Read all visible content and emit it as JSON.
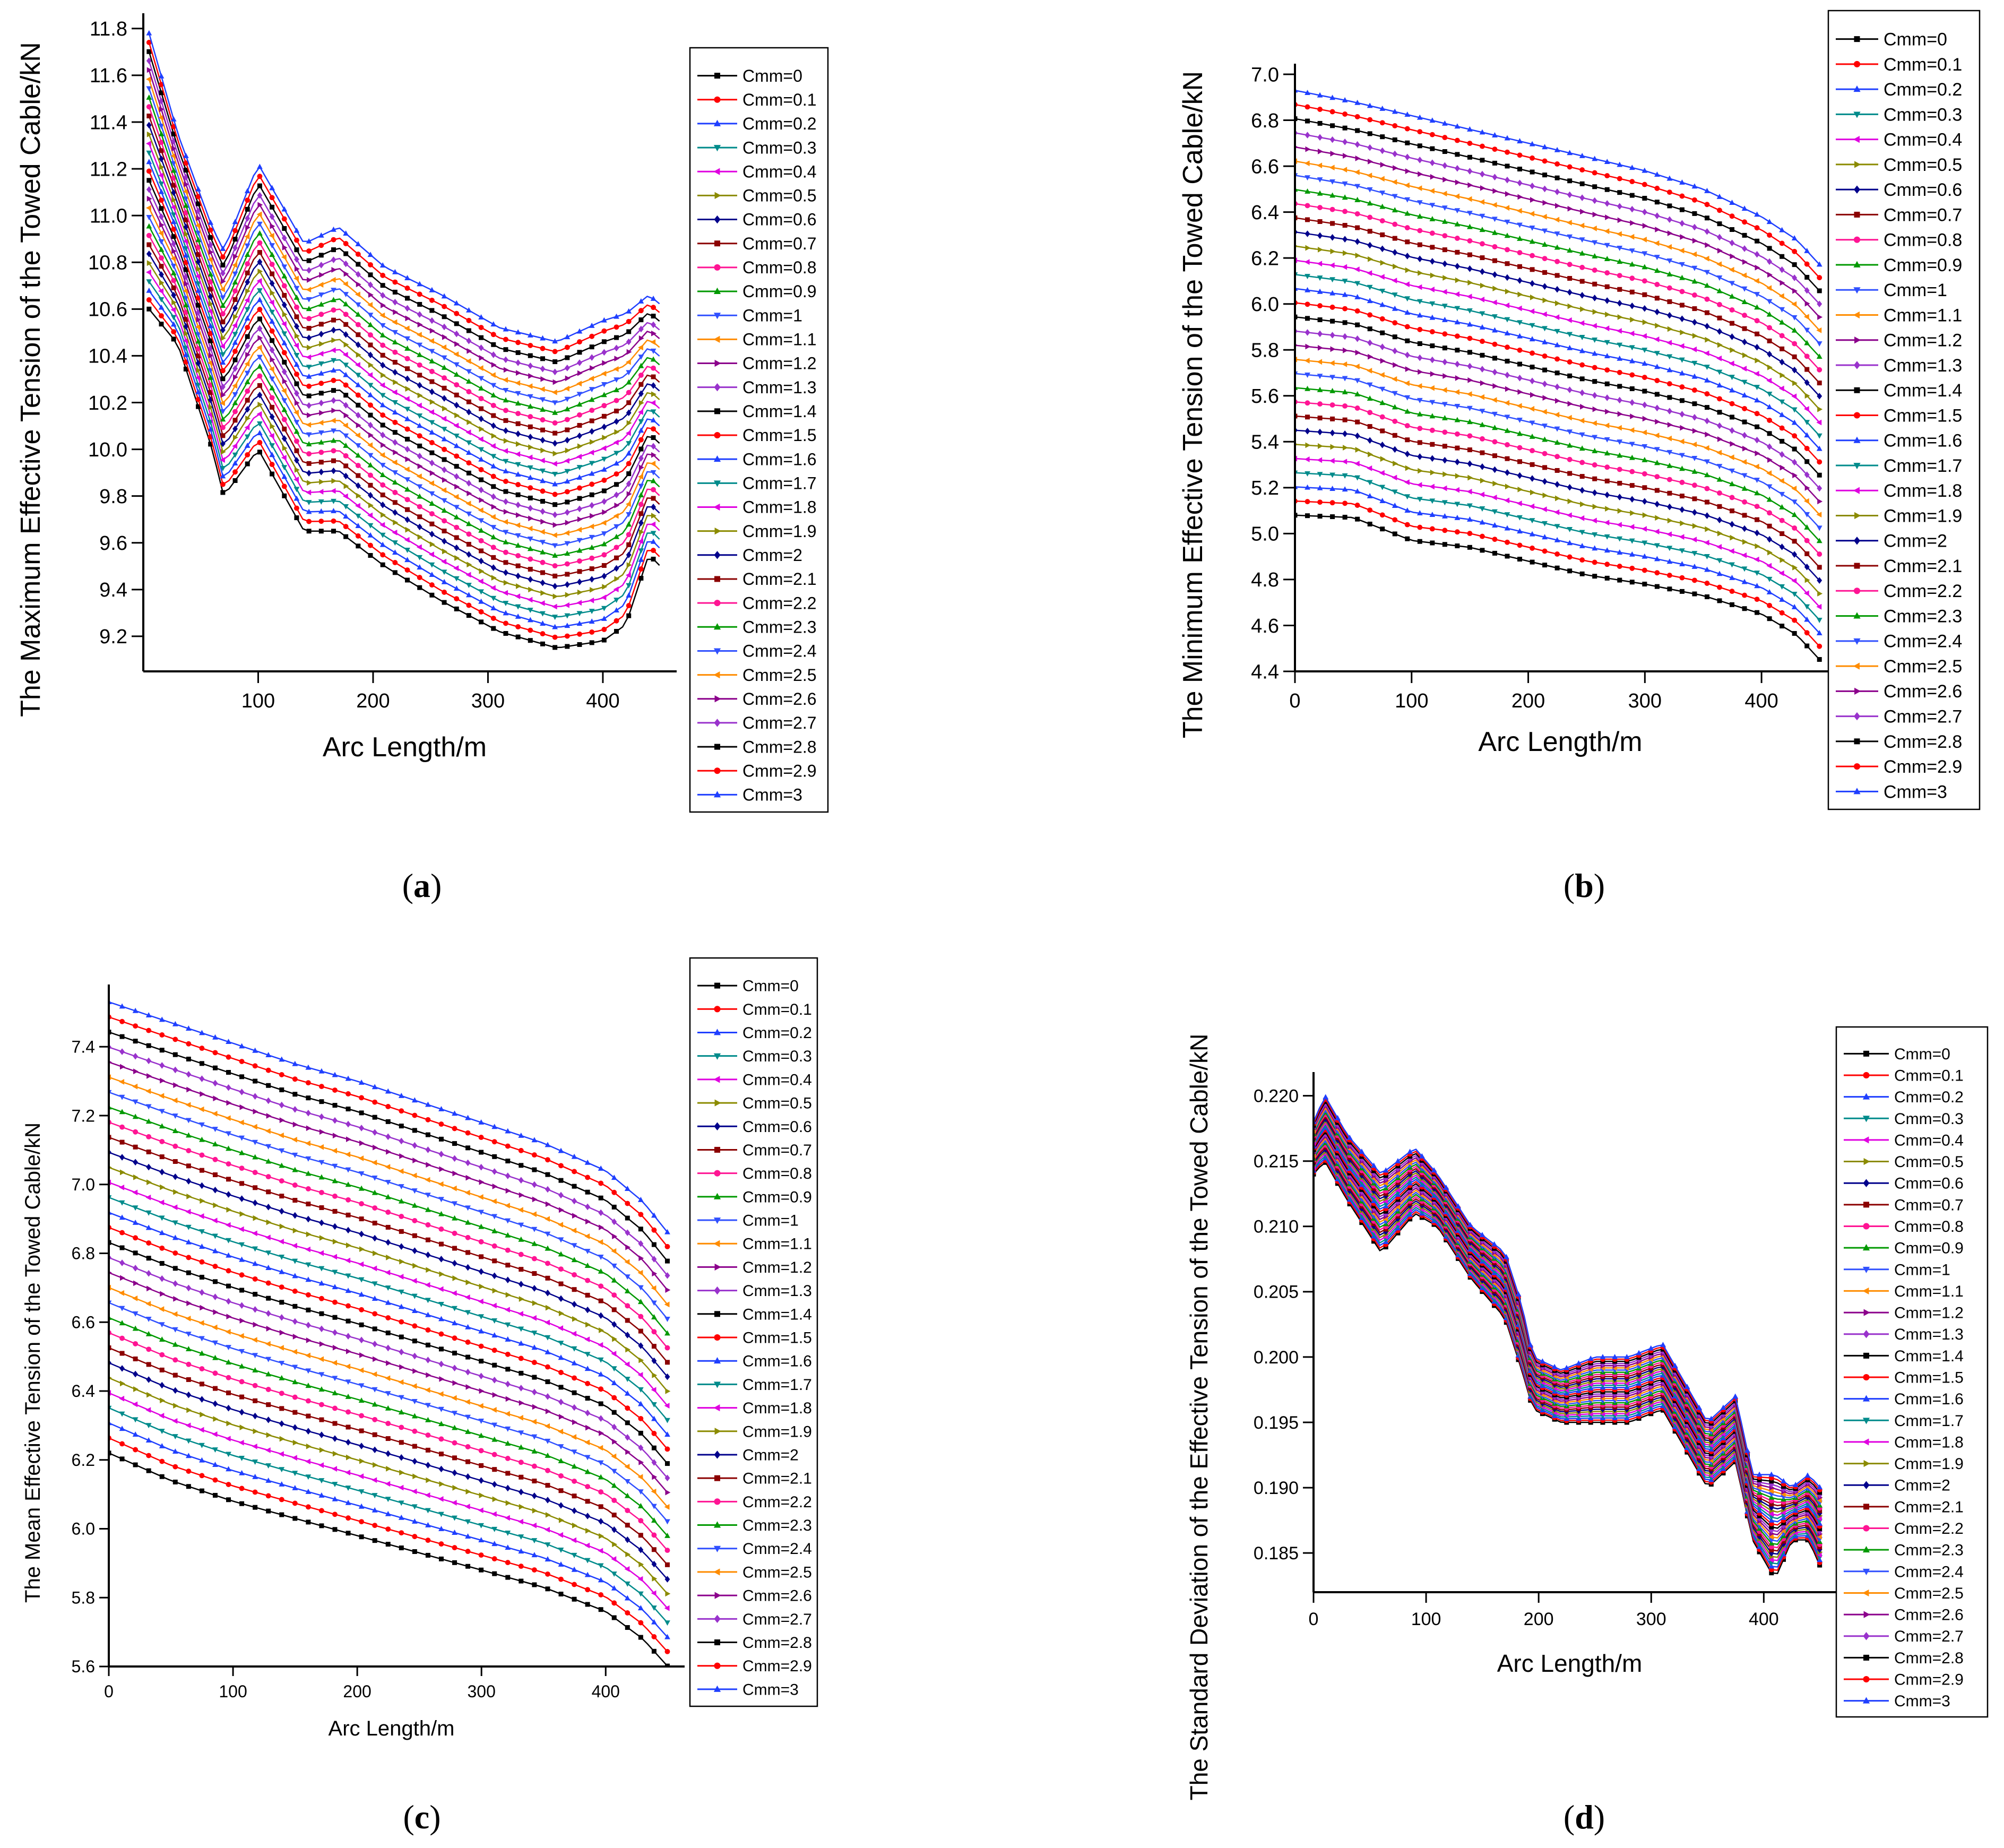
{
  "legend_entries": [
    "Cmm=0",
    "Cmm=0.1",
    "Cmm=0.2",
    "Cmm=0.3",
    "Cmm=0.4",
    "Cmm=0.5",
    "Cmm=0.6",
    "Cmm=0.7",
    "Cmm=0.8",
    "Cmm=0.9",
    "Cmm=1",
    "Cmm=1.1",
    "Cmm=1.2",
    "Cmm=1.3",
    "Cmm=1.4",
    "Cmm=1.5",
    "Cmm=1.6",
    "Cmm=1.7",
    "Cmm=1.8",
    "Cmm=1.9",
    "Cmm=2",
    "Cmm=2.1",
    "Cmm=2.2",
    "Cmm=2.3",
    "Cmm=2.4",
    "Cmm=2.5",
    "Cmm=2.6",
    "Cmm=2.7",
    "Cmm=2.8",
    "Cmm=2.9",
    "Cmm=3"
  ],
  "series_colors": [
    "#000000",
    "#ff0000",
    "#1f3fff",
    "#008b8b",
    "#e000e0",
    "#8b8b00",
    "#00008b",
    "#8b0000",
    "#ff1493",
    "#009900",
    "#3050ff",
    "#ff8c00",
    "#8b008b",
    "#9932cc",
    "#000000",
    "#ff0000",
    "#1f3fff",
    "#008b8b",
    "#e000e0",
    "#8b8b00",
    "#00008b",
    "#8b0000",
    "#ff1493",
    "#009900",
    "#3050ff",
    "#ff8c00",
    "#8b008b",
    "#9932cc",
    "#000000",
    "#ff0000",
    "#1f3fff"
  ],
  "chart_data": [
    {
      "id": "a",
      "type": "line",
      "caption": "a",
      "title": "",
      "xlabel": "Arc Length/m",
      "ylabel": "The Maximum Effective Tension of the Towed Cable/kN",
      "xlim": [
        0,
        455
      ],
      "ylim": [
        9.05,
        11.82
      ],
      "xticks": [
        100,
        200,
        300,
        400
      ],
      "yticks": [
        9.2,
        9.4,
        9.6,
        9.8,
        10.0,
        10.2,
        10.4,
        10.6,
        10.8,
        11.0,
        11.2,
        11.4,
        11.6,
        11.8
      ],
      "tick_decimals": 1,
      "legend": "right",
      "series_note": "31 series (Cmm = 0 ... 3); curves shown for Cmm=0 (bottom) and Cmm=3 (top); intermediate series spaced between them",
      "x": [
        5,
        30,
        60,
        70,
        100,
        140,
        170,
        210,
        260,
        310,
        360,
        400,
        420,
        440,
        450
      ],
      "series": [
        {
          "name": "Cmm=0",
          "values": [
            10.6,
            10.45,
            10.0,
            9.8,
            10.0,
            9.65,
            9.65,
            9.5,
            9.35,
            9.22,
            9.15,
            9.18,
            9.25,
            9.55,
            9.5
          ]
        },
        {
          "name": "Cmm=3",
          "values": [
            11.78,
            11.35,
            10.95,
            10.85,
            11.22,
            10.88,
            10.95,
            10.78,
            10.66,
            10.52,
            10.46,
            10.55,
            10.58,
            10.66,
            10.62
          ]
        }
      ]
    },
    {
      "id": "b",
      "type": "line",
      "caption": "b",
      "title": "",
      "xlabel": "Arc Length/m",
      "ylabel": "The Minimum Effective Tension of the Towed Cable/kN",
      "xlim": [
        0,
        455
      ],
      "ylim": [
        4.4,
        7.0
      ],
      "xticks": [
        0,
        100,
        200,
        300,
        400
      ],
      "yticks": [
        4.4,
        4.6,
        4.8,
        5.0,
        5.2,
        5.4,
        5.6,
        5.8,
        6.0,
        6.2,
        6.4,
        6.6,
        6.8,
        7.0
      ],
      "tick_decimals": 1,
      "legend": "right",
      "series_note": "31 series (Cmm = 0 ... 3); curves shown for Cmm=0 (bottom) and Cmm=3 (top); intermediate series spaced between them",
      "x": [
        0,
        50,
        100,
        150,
        200,
        250,
        300,
        350,
        400,
        430,
        450
      ],
      "series": [
        {
          "name": "Cmm=0",
          "values": [
            5.08,
            5.07,
            4.97,
            4.94,
            4.88,
            4.82,
            4.78,
            4.73,
            4.65,
            4.56,
            4.45
          ]
        },
        {
          "name": "Cmm=3",
          "values": [
            6.93,
            6.88,
            6.82,
            6.76,
            6.7,
            6.64,
            6.58,
            6.5,
            6.38,
            6.28,
            6.17
          ]
        }
      ]
    },
    {
      "id": "c",
      "type": "line",
      "caption": "c",
      "title": "",
      "xlabel": "Arc Length/m",
      "ylabel": "The Mean Effective Tension of the Towed Cable/kN",
      "xlim": [
        0,
        455
      ],
      "ylim": [
        5.6,
        7.55
      ],
      "xticks": [
        0,
        100,
        200,
        300,
        400
      ],
      "yticks": [
        5.6,
        5.8,
        6.0,
        6.2,
        6.4,
        6.6,
        6.8,
        7.0,
        7.2,
        7.4
      ],
      "tick_decimals": 1,
      "legend": "right",
      "series_note": "31 series (Cmm = 0 ... 3); curves shown for Cmm=0 (bottom) and Cmm=3 (top); intermediate series spaced between them",
      "x": [
        0,
        50,
        100,
        150,
        200,
        250,
        300,
        350,
        400,
        430,
        450
      ],
      "series": [
        {
          "name": "Cmm=0",
          "values": [
            6.22,
            6.14,
            6.08,
            6.03,
            5.98,
            5.93,
            5.88,
            5.83,
            5.76,
            5.68,
            5.6
          ]
        },
        {
          "name": "Cmm=3",
          "values": [
            7.53,
            7.47,
            7.41,
            7.35,
            7.3,
            7.24,
            7.18,
            7.12,
            7.04,
            6.95,
            6.86
          ]
        }
      ]
    },
    {
      "id": "d",
      "type": "line",
      "caption": "d",
      "title": "",
      "xlabel": "Arc Length/m",
      "ylabel": "The Standard Deviation of the Effective Tension of the Towed Cable/kN",
      "xlim": [
        0,
        455
      ],
      "ylim": [
        0.182,
        0.221
      ],
      "xticks": [
        0,
        100,
        200,
        300,
        400
      ],
      "yticks": [
        0.185,
        0.19,
        0.195,
        0.2,
        0.205,
        0.21,
        0.215,
        0.22
      ],
      "tick_decimals": 3,
      "legend": "right",
      "series_note": "31 series (Cmm = 0 ... 3); curves shown for Cmm=0 (bottom) and Cmm=3 (top); intermediate series spaced between them",
      "x": [
        0,
        10,
        30,
        60,
        90,
        110,
        140,
        170,
        185,
        195,
        220,
        250,
        280,
        310,
        330,
        350,
        375,
        390,
        410,
        425,
        440,
        450
      ],
      "series": [
        {
          "name": "Cmm=0",
          "values": [
            0.214,
            0.215,
            0.212,
            0.208,
            0.211,
            0.21,
            0.206,
            0.203,
            0.199,
            0.196,
            0.195,
            0.195,
            0.195,
            0.196,
            0.193,
            0.19,
            0.192,
            0.186,
            0.183,
            0.186,
            0.186,
            0.184
          ]
        },
        {
          "name": "Cmm=3",
          "values": [
            0.218,
            0.22,
            0.217,
            0.214,
            0.216,
            0.214,
            0.21,
            0.208,
            0.204,
            0.2,
            0.199,
            0.2,
            0.2,
            0.201,
            0.198,
            0.195,
            0.197,
            0.191,
            0.191,
            0.19,
            0.191,
            0.19
          ]
        }
      ]
    }
  ]
}
